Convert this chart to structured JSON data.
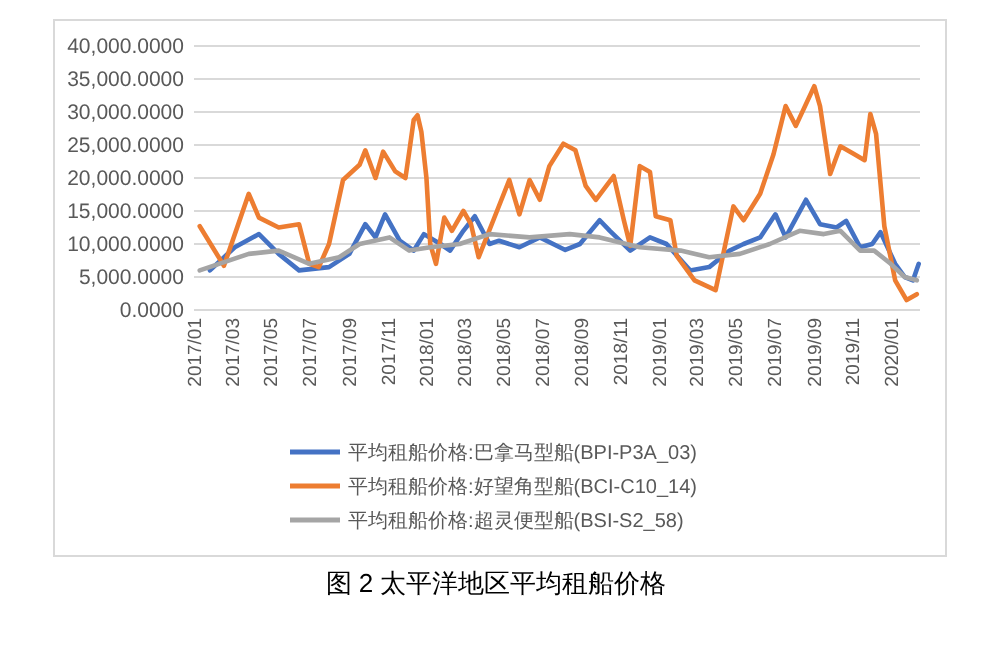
{
  "chart_data": {
    "type": "line",
    "title": "图 2 太平洋地区平均租船价格",
    "xlim": [
      "2017-01-01",
      "2020-02-15"
    ],
    "xticks": [
      {
        "value": "2017-01-01",
        "label": "2017/01"
      },
      {
        "value": "2017-03-01",
        "label": "2017/03"
      },
      {
        "value": "2017-05-01",
        "label": "2017/05"
      },
      {
        "value": "2017-07-01",
        "label": "2017/07"
      },
      {
        "value": "2017-09-01",
        "label": "2017/09"
      },
      {
        "value": "2017-11-01",
        "label": "2017/11"
      },
      {
        "value": "2018-01-01",
        "label": "2018/01"
      },
      {
        "value": "2018-03-01",
        "label": "2018/03"
      },
      {
        "value": "2018-05-01",
        "label": "2018/05"
      },
      {
        "value": "2018-07-01",
        "label": "2018/07"
      },
      {
        "value": "2018-09-01",
        "label": "2018/09"
      },
      {
        "value": "2018-11-01",
        "label": "2018/11"
      },
      {
        "value": "2019-01-01",
        "label": "2019/01"
      },
      {
        "value": "2019-03-01",
        "label": "2019/03"
      },
      {
        "value": "2019-05-01",
        "label": "2019/05"
      },
      {
        "value": "2019-07-01",
        "label": "2019/07"
      },
      {
        "value": "2019-09-01",
        "label": "2019/09"
      },
      {
        "value": "2019-11-01",
        "label": "2019/11"
      },
      {
        "value": "2020-01-01",
        "label": "2020/01"
      }
    ],
    "ylim": [
      0,
      40000
    ],
    "yticks": [
      {
        "value": 0,
        "label": "0.0000"
      },
      {
        "value": 5000,
        "label": "5,000.0000"
      },
      {
        "value": 10000,
        "label": "10,000.0000"
      },
      {
        "value": 15000,
        "label": "15,000.0000"
      },
      {
        "value": 20000,
        "label": "20,000.0000"
      },
      {
        "value": 25000,
        "label": "25,000.0000"
      },
      {
        "value": 30000,
        "label": "30,000.0000"
      },
      {
        "value": 35000,
        "label": "35,000.0000"
      },
      {
        "value": 40000,
        "label": "40,000.0000"
      }
    ],
    "grid": "y",
    "legend": "bottom",
    "marker": "none",
    "line_style": "solid",
    "series": [
      {
        "name": "平均租船价格:巴拿马型船(BPI-P3A_03)",
        "color": "#4472c4",
        "x": [
          "2017-01-26",
          "2017-03-06",
          "2017-04-13",
          "2017-05-14",
          "2017-06-15",
          "2017-08-01",
          "2017-09-02",
          "2017-09-27",
          "2017-10-13",
          "2017-10-28",
          "2017-11-20",
          "2017-12-12",
          "2017-12-28",
          "2018-01-23",
          "2018-02-07",
          "2018-02-28",
          "2018-03-18",
          "2018-04-10",
          "2018-04-25",
          "2018-05-27",
          "2018-06-28",
          "2018-08-07",
          "2018-08-30",
          "2018-09-30",
          "2018-10-16",
          "2018-11-17",
          "2018-12-18",
          "2019-01-13",
          "2019-02-19",
          "2019-03-21",
          "2019-04-22",
          "2019-05-14",
          "2019-06-09",
          "2019-07-03",
          "2019-07-19",
          "2019-08-20",
          "2019-09-11",
          "2019-10-07",
          "2019-10-22",
          "2019-11-13",
          "2019-12-02",
          "2019-12-15",
          "2020-01-07",
          "2020-01-22",
          "2020-02-04",
          "2020-02-13"
        ],
        "values": [
          6000,
          9500,
          11500,
          8500,
          6000,
          6500,
          8500,
          13000,
          11000,
          14500,
          10500,
          9000,
          11500,
          10000,
          9000,
          12000,
          14200,
          10000,
          10500,
          9500,
          11000,
          9100,
          10000,
          13600,
          12000,
          9000,
          11000,
          10000,
          6000,
          6500,
          9000,
          10000,
          11000,
          14500,
          11000,
          16700,
          13000,
          12500,
          13500,
          9500,
          10000,
          11800,
          7000,
          5000,
          4500,
          7000
        ]
      },
      {
        "name": "平均租船价格:好望角型船(BCI-C10_14)",
        "color": "#ed7d31",
        "x": [
          "2017-01-10",
          "2017-02-17",
          "2017-03-28",
          "2017-04-13",
          "2017-05-14",
          "2017-06-15",
          "2017-07-01",
          "2017-07-16",
          "2017-08-01",
          "2017-08-23",
          "2017-09-18",
          "2017-09-27",
          "2017-10-13",
          "2017-10-25",
          "2017-11-13",
          "2017-11-29",
          "2017-12-05",
          "2017-12-12",
          "2017-12-18",
          "2017-12-24",
          "2018-01-01",
          "2018-01-07",
          "2018-01-16",
          "2018-01-29",
          "2018-02-10",
          "2018-02-28",
          "2018-03-12",
          "2018-03-24",
          "2018-04-16",
          "2018-05-11",
          "2018-05-27",
          "2018-06-12",
          "2018-06-28",
          "2018-07-13",
          "2018-08-04",
          "2018-08-23",
          "2018-09-08",
          "2018-09-24",
          "2018-10-22",
          "2018-11-07",
          "2018-11-17",
          "2018-12-02",
          "2018-12-18",
          "2018-12-27",
          "2019-01-19",
          "2019-01-29",
          "2019-02-26",
          "2019-03-31",
          "2019-04-28",
          "2019-05-14",
          "2019-06-09",
          "2019-06-30",
          "2019-07-19",
          "2019-08-04",
          "2019-09-02",
          "2019-09-11",
          "2019-09-27",
          "2019-10-13",
          "2019-11-04",
          "2019-11-20",
          "2019-11-29",
          "2019-12-08",
          "2019-12-21",
          "2020-01-07",
          "2020-01-25",
          "2020-02-10"
        ],
        "values": [
          12700,
          6700,
          17600,
          14000,
          12500,
          13000,
          7000,
          6500,
          10000,
          19700,
          22000,
          24200,
          20000,
          24000,
          21000,
          20000,
          24000,
          28800,
          29500,
          27000,
          20000,
          10000,
          7000,
          14000,
          12000,
          15000,
          13000,
          8000,
          13600,
          19700,
          14500,
          19700,
          16700,
          21800,
          25200,
          24200,
          18800,
          16700,
          20300,
          13600,
          9700,
          21800,
          20900,
          14200,
          13600,
          8200,
          4500,
          3000,
          15700,
          13600,
          17600,
          23600,
          30900,
          27900,
          33900,
          30900,
          20600,
          24800,
          23600,
          22700,
          29700,
          26700,
          12700,
          4500,
          1500,
          2400
        ]
      },
      {
        "name": "平均租船价格:超灵便型船(BSI-S2_58)",
        "color": "#a5a5a5",
        "x": [
          "2017-01-10",
          "2017-03-28",
          "2017-05-14",
          "2017-07-01",
          "2017-08-17",
          "2017-09-18",
          "2017-11-04",
          "2017-12-05",
          "2018-01-07",
          "2018-02-22",
          "2018-04-10",
          "2018-06-12",
          "2018-08-14",
          "2018-09-30",
          "2018-12-02",
          "2019-02-04",
          "2019-03-21",
          "2019-05-08",
          "2019-06-24",
          "2019-08-10",
          "2019-09-17",
          "2019-10-13",
          "2019-11-13",
          "2019-12-05",
          "2019-12-31",
          "2020-01-22",
          "2020-02-10"
        ],
        "values": [
          6000,
          8500,
          9000,
          7000,
          8000,
          10000,
          11000,
          9000,
          9500,
          10000,
          11500,
          11000,
          11500,
          11000,
          9500,
          9000,
          8000,
          8500,
          10000,
          12000,
          11500,
          12000,
          9000,
          9000,
          7000,
          5000,
          4500
        ]
      }
    ]
  }
}
